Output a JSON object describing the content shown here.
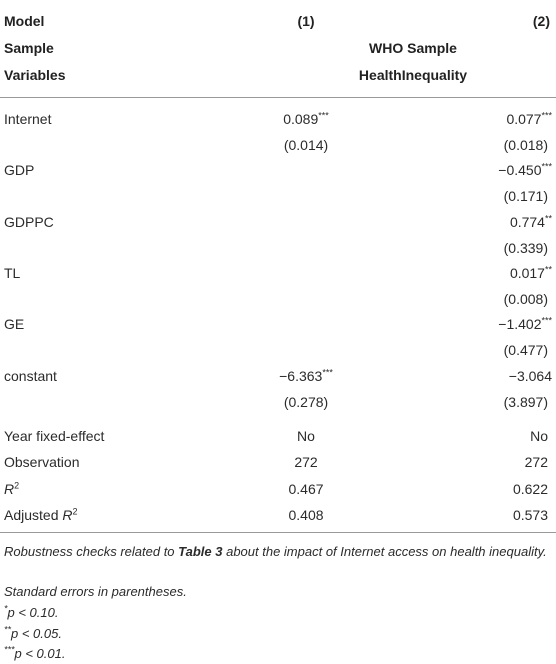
{
  "header": {
    "rows": [
      [
        "Model",
        "(1)",
        "(2)"
      ],
      [
        "Sample",
        "WHO Sample"
      ],
      [
        "Variables",
        "HealthInequality"
      ]
    ]
  },
  "table": {
    "coef_rows": [
      {
        "label": "Internet",
        "cells": [
          {
            "v": "0.089",
            "s": "***"
          },
          {
            "v": "0.077",
            "s": "***"
          }
        ],
        "se": [
          "(0.014)",
          "(0.018)"
        ]
      },
      {
        "label": "GDP",
        "cells": [
          null,
          {
            "v": "−0.450",
            "s": "***"
          }
        ],
        "se": [
          null,
          "(0.171)"
        ]
      },
      {
        "label": "GDPPC",
        "cells": [
          null,
          {
            "v": "0.774",
            "s": "**"
          }
        ],
        "se": [
          null,
          "(0.339)"
        ]
      },
      {
        "label": "TL",
        "cells": [
          null,
          {
            "v": "0.017",
            "s": "**"
          }
        ],
        "se": [
          null,
          "(0.008)"
        ]
      },
      {
        "label": "GE",
        "cells": [
          null,
          {
            "v": "−1.402",
            "s": "***"
          }
        ],
        "se": [
          null,
          "(0.477)"
        ]
      },
      {
        "label": "constant",
        "cells": [
          {
            "v": "−6.363",
            "s": "***"
          },
          {
            "v": "−3.064"
          }
        ],
        "se": [
          "(0.278)",
          "(3.897)"
        ]
      }
    ],
    "stat_rows": [
      {
        "label": "Year fixed-effect",
        "cells": [
          "No",
          "No"
        ]
      },
      {
        "label": "Observation",
        "cells": [
          "272",
          "272"
        ]
      },
      {
        "label_italic": "R",
        "label_sup": "2",
        "cells": [
          "0.467",
          "0.622"
        ]
      },
      {
        "label": "Adjusted ",
        "label_italic": "R",
        "label_sup": "2",
        "cells": [
          "0.408",
          "0.573"
        ]
      }
    ]
  },
  "notes": {
    "caption": {
      "before": "Robustness checks related to ",
      "bold": "Table 3",
      "after": " about the impact of Internet access on health inequality."
    },
    "se_note": "Standard errors in parentheses.",
    "sig": [
      {
        "sup": "*",
        "text": "p < 0.10."
      },
      {
        "sup": "**",
        "text": "p < 0.05."
      },
      {
        "sup": "***",
        "text": "p < 0.01."
      }
    ]
  }
}
